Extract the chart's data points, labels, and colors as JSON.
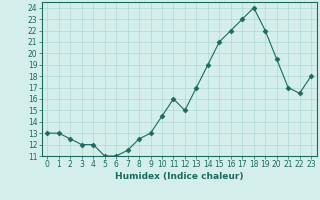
{
  "x": [
    0,
    1,
    2,
    3,
    4,
    5,
    6,
    7,
    8,
    9,
    10,
    11,
    12,
    13,
    14,
    15,
    16,
    17,
    18,
    19,
    20,
    21,
    22,
    23
  ],
  "y": [
    13,
    13,
    12.5,
    12,
    12,
    11,
    11,
    11.5,
    12.5,
    13,
    14.5,
    16,
    15,
    17,
    19,
    21,
    22,
    23,
    24,
    22,
    19.5,
    17,
    16.5,
    18
  ],
  "line_color": "#1a6b5e",
  "marker": "D",
  "marker_size": 2.5,
  "bg_color": "#d4eeeb",
  "grid_color": "#b0d8d4",
  "xlabel": "Humidex (Indice chaleur)",
  "ylim": [
    11,
    24.5
  ],
  "xlim": [
    -0.5,
    23.5
  ],
  "yticks": [
    11,
    12,
    13,
    14,
    15,
    16,
    17,
    18,
    19,
    20,
    21,
    22,
    23,
    24
  ],
  "xticks": [
    0,
    1,
    2,
    3,
    4,
    5,
    6,
    7,
    8,
    9,
    10,
    11,
    12,
    13,
    14,
    15,
    16,
    17,
    18,
    19,
    20,
    21,
    22,
    23
  ],
  "label_fontsize": 6.5,
  "tick_fontsize": 5.5
}
